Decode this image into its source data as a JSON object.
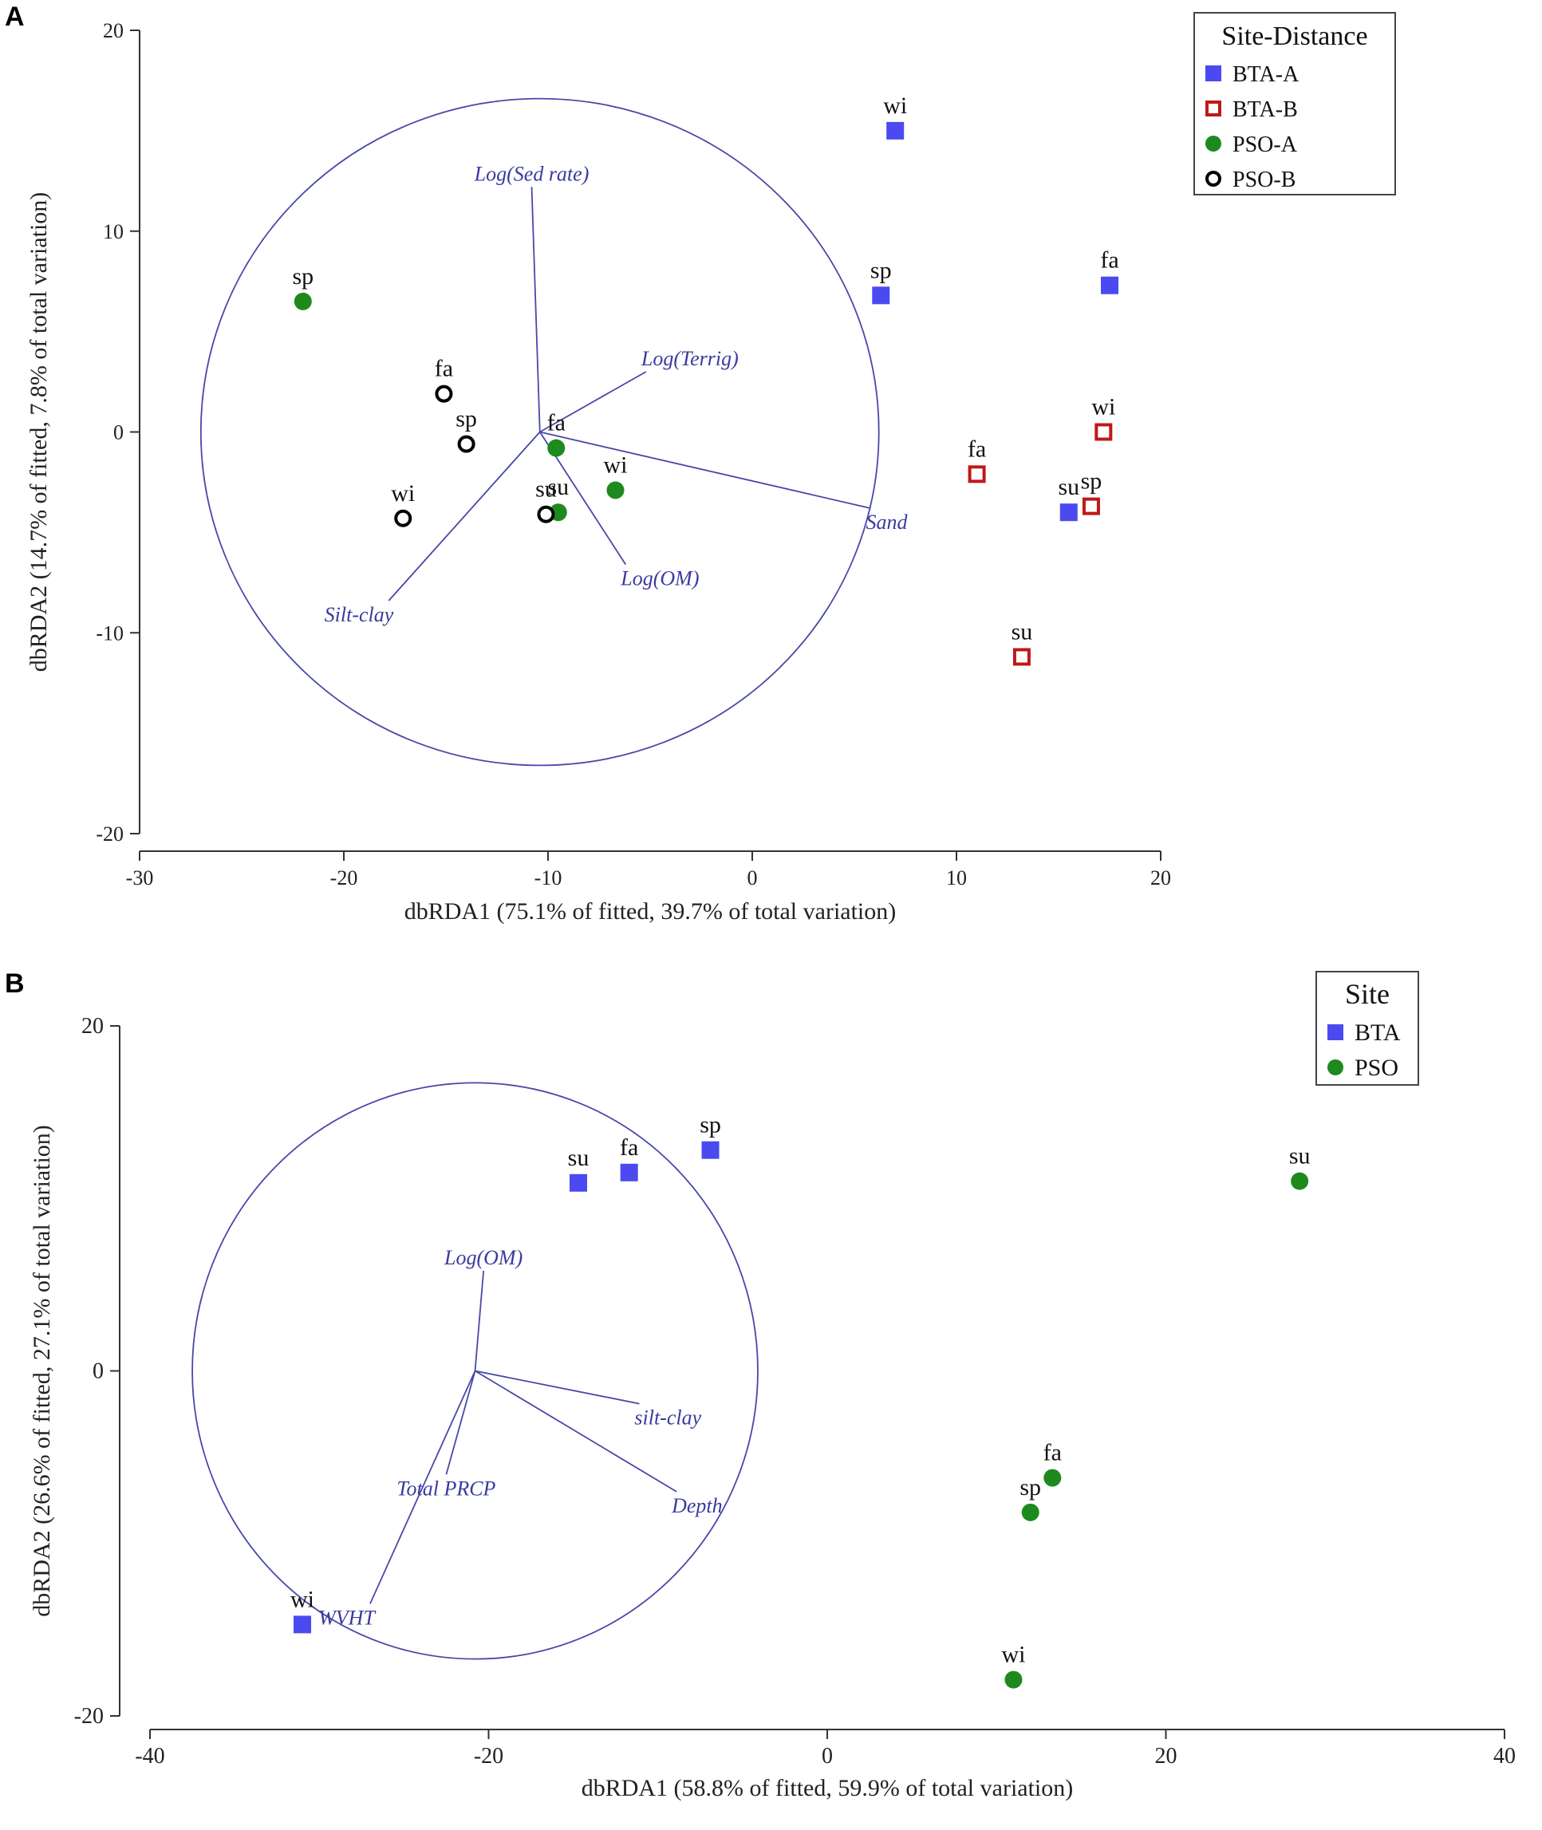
{
  "chart_data": [
    {
      "panel": "A",
      "type": "scatter",
      "xlabel": "dbRDA1 (75.1% of fitted, 39.7% of total variation)",
      "ylabel": "dbRDA2 (14.7% of fitted, 7.8% of total variation)",
      "xlim": [
        -30,
        20
      ],
      "ylim": [
        -20,
        20
      ],
      "xticks": [
        -30,
        -20,
        -10,
        0,
        10,
        20
      ],
      "yticks": [
        -20,
        -10,
        0,
        10,
        20
      ],
      "legend_title": "Site-Distance",
      "legend_position": "top-right",
      "series": [
        {
          "name": "BTA-A",
          "marker": "square",
          "filled": true,
          "color": "#4a4af0",
          "points": [
            {
              "label": "wi",
              "x": 7.0,
              "y": 15.0
            },
            {
              "label": "sp",
              "x": 6.3,
              "y": 6.8
            },
            {
              "label": "fa",
              "x": 17.5,
              "y": 7.3
            },
            {
              "label": "su",
              "x": 15.5,
              "y": -4.0
            }
          ]
        },
        {
          "name": "BTA-B",
          "marker": "square",
          "filled": false,
          "color": "#c01818",
          "points": [
            {
              "label": "fa",
              "x": 11.0,
              "y": -2.1
            },
            {
              "label": "wi",
              "x": 17.2,
              "y": 0.0
            },
            {
              "label": "sp",
              "x": 16.6,
              "y": -3.7
            },
            {
              "label": "su",
              "x": 13.2,
              "y": -11.2
            }
          ]
        },
        {
          "name": "PSO-A",
          "marker": "circle",
          "filled": true,
          "color": "#1e8a1e",
          "points": [
            {
              "label": "sp",
              "x": -22.0,
              "y": 6.5
            },
            {
              "label": "fa",
              "x": -9.6,
              "y": -0.8
            },
            {
              "label": "wi",
              "x": -6.7,
              "y": -2.9
            },
            {
              "label": "su",
              "x": -9.5,
              "y": -4.0
            }
          ]
        },
        {
          "name": "PSO-B",
          "marker": "circle",
          "filled": false,
          "color": "#000000",
          "points": [
            {
              "label": "fa",
              "x": -15.1,
              "y": 1.9
            },
            {
              "label": "sp",
              "x": -14.0,
              "y": -0.6
            },
            {
              "label": "wi",
              "x": -17.1,
              "y": -4.3
            },
            {
              "label": "su",
              "x": -10.1,
              "y": -4.1
            }
          ]
        }
      ],
      "circle": {
        "cx": -10.4,
        "cy": 0,
        "r": 16.6
      },
      "vectors": [
        {
          "label": "Log(Sed rate)",
          "x": -10.8,
          "y": 12.2
        },
        {
          "label": "Log(Terrig)",
          "x": -5.2,
          "y": 3.0
        },
        {
          "label": "Sand",
          "x": 5.8,
          "y": -3.8
        },
        {
          "label": "Log(OM)",
          "x": -6.2,
          "y": -6.6
        },
        {
          "label": "Silt-clay",
          "x": -17.8,
          "y": -8.4
        }
      ]
    },
    {
      "panel": "B",
      "type": "scatter",
      "xlabel": "dbRDA1 (58.8% of fitted, 59.9% of total variation)",
      "ylabel": "dbRDA2 (26.6% of fitted, 27.1% of total variation)",
      "xlim": [
        -40,
        40
      ],
      "ylim": [
        -20,
        20
      ],
      "xticks": [
        -40,
        -20,
        0,
        20,
        40
      ],
      "yticks": [
        -20,
        0,
        20
      ],
      "legend_title": "Site",
      "legend_position": "top-right",
      "series": [
        {
          "name": "BTA",
          "marker": "square",
          "filled": true,
          "color": "#4a4af0",
          "points": [
            {
              "label": "su",
              "x": -14.7,
              "y": 10.9
            },
            {
              "label": "fa",
              "x": -11.7,
              "y": 11.5
            },
            {
              "label": "sp",
              "x": -6.9,
              "y": 12.8
            },
            {
              "label": "wi",
              "x": -31.0,
              "y": -14.7
            }
          ]
        },
        {
          "name": "PSO",
          "marker": "circle",
          "filled": true,
          "color": "#1e8a1e",
          "points": [
            {
              "label": "su",
              "x": 27.9,
              "y": 11.0
            },
            {
              "label": "fa",
              "x": 13.3,
              "y": -6.2
            },
            {
              "label": "sp",
              "x": 12.0,
              "y": -8.2
            },
            {
              "label": "wi",
              "x": 11.0,
              "y": -17.9
            }
          ]
        }
      ],
      "circle": {
        "cx": -20.8,
        "cy": 0,
        "r": 16.7
      },
      "vectors": [
        {
          "label": "Log(OM)",
          "x": -20.3,
          "y": 5.8
        },
        {
          "label": "silt-clay",
          "x": -11.1,
          "y": -1.9
        },
        {
          "label": "Depth",
          "x": -8.9,
          "y": -7.0
        },
        {
          "label": "Total PRCP",
          "x": -22.5,
          "y": -6.0
        },
        {
          "label": "WVHT",
          "x": -27.0,
          "y": -13.5
        }
      ]
    }
  ]
}
